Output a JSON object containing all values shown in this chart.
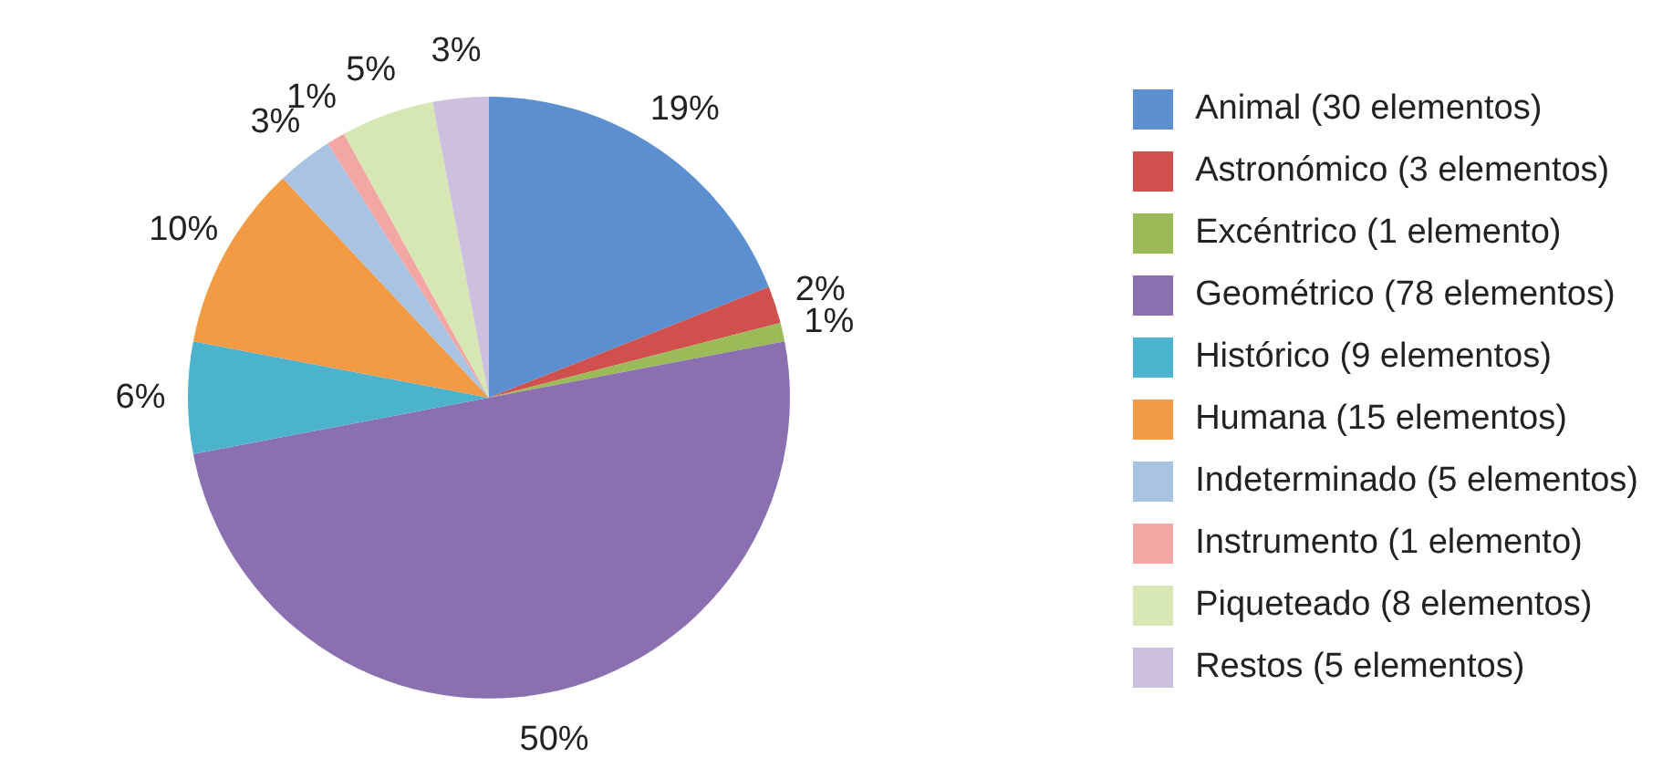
{
  "chart_data": {
    "type": "pie",
    "categories": [
      "Animal (30 elementos)",
      "Astronómico (3 elementos)",
      "Excéntrico (1 elemento)",
      "Geométrico (78 elementos)",
      "Histórico (9 elementos)",
      "Humana (15 elementos)",
      "Indeterminado (5 elementos)",
      "Instrumento (1 elemento)",
      "Piqueteado (8 elementos)",
      "Restos (5 elementos)"
    ],
    "values": [
      19,
      2,
      1,
      50,
      6,
      10,
      3,
      1,
      5,
      3
    ],
    "value_labels": [
      "19%",
      "2%",
      "1%",
      "50%",
      "6%",
      "10%",
      "3%",
      "1%",
      "5%",
      "3%"
    ],
    "colors": [
      "#5b8fcf",
      "#d0504d",
      "#9bbb59",
      "#8a70b0",
      "#4bb3cc",
      "#f39a45",
      "#a9c3e3",
      "#f2a7a5",
      "#d6e7b3",
      "#cdc0de"
    ],
    "legend": "right"
  }
}
